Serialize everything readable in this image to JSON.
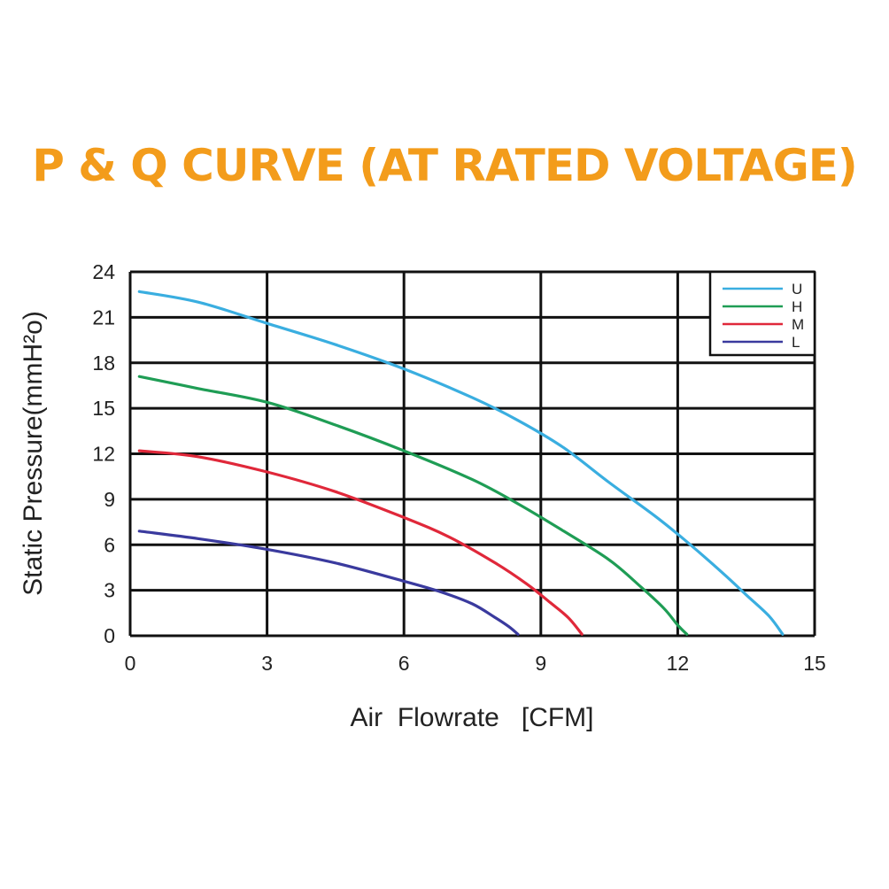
{
  "chart_data": {
    "type": "line",
    "title": "P & Q CURVE (AT RATED VOLTAGE)",
    "xlabel": "Air  Flowrate   [CFM]",
    "ylabel": "Static Pressure(mmH²o)",
    "xlim": [
      0,
      15
    ],
    "ylim": [
      0,
      24
    ],
    "xticks": [
      0,
      3,
      6,
      9,
      12,
      15
    ],
    "yticks": [
      0,
      3,
      6,
      9,
      12,
      15,
      18,
      21,
      24
    ],
    "xtick_labels": [
      "0",
      "3",
      "6",
      "9",
      "12",
      "15"
    ],
    "ytick_labels": [
      "0",
      "3",
      "6",
      "9",
      "12",
      "15",
      "18",
      "21",
      "24"
    ],
    "grid": true,
    "legend_position": "top-right",
    "series": [
      {
        "name": "U",
        "color": "#3aaee0",
        "points": [
          [
            0.2,
            22.7
          ],
          [
            1.5,
            22.0
          ],
          [
            3.0,
            20.6
          ],
          [
            4.5,
            19.2
          ],
          [
            6.0,
            17.6
          ],
          [
            7.5,
            15.7
          ],
          [
            8.5,
            14.2
          ],
          [
            9.5,
            12.4
          ],
          [
            10.5,
            10.1
          ],
          [
            11.5,
            7.9
          ],
          [
            12.2,
            6.2
          ],
          [
            13.0,
            4.1
          ],
          [
            13.5,
            2.7
          ],
          [
            14.0,
            1.3
          ],
          [
            14.3,
            0.1
          ]
        ]
      },
      {
        "name": "H",
        "color": "#1f9d55",
        "points": [
          [
            0.2,
            17.1
          ],
          [
            1.5,
            16.3
          ],
          [
            3.0,
            15.4
          ],
          [
            4.5,
            13.9
          ],
          [
            6.0,
            12.2
          ],
          [
            7.5,
            10.3
          ],
          [
            8.5,
            8.7
          ],
          [
            9.5,
            6.9
          ],
          [
            10.5,
            5.0
          ],
          [
            11.2,
            3.2
          ],
          [
            11.7,
            1.8
          ],
          [
            12.0,
            0.7
          ],
          [
            12.2,
            0.1
          ]
        ]
      },
      {
        "name": "M",
        "color": "#e0283a",
        "points": [
          [
            0.2,
            12.2
          ],
          [
            1.5,
            11.8
          ],
          [
            3.0,
            10.8
          ],
          [
            4.5,
            9.5
          ],
          [
            6.0,
            7.8
          ],
          [
            7.0,
            6.5
          ],
          [
            8.0,
            4.8
          ],
          [
            8.7,
            3.4
          ],
          [
            9.2,
            2.2
          ],
          [
            9.6,
            1.2
          ],
          [
            9.9,
            0.1
          ]
        ]
      },
      {
        "name": "L",
        "color": "#3a3a9e",
        "points": [
          [
            0.2,
            6.9
          ],
          [
            1.5,
            6.4
          ],
          [
            3.0,
            5.7
          ],
          [
            4.5,
            4.8
          ],
          [
            6.0,
            3.6
          ],
          [
            6.8,
            2.9
          ],
          [
            7.5,
            2.1
          ],
          [
            8.0,
            1.2
          ],
          [
            8.3,
            0.6
          ],
          [
            8.5,
            0.1
          ]
        ]
      }
    ]
  }
}
